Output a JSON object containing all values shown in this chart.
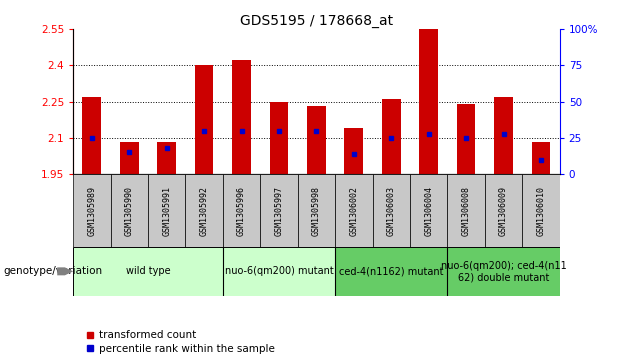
{
  "title": "GDS5195 / 178668_at",
  "samples": [
    "GSM1305989",
    "GSM1305990",
    "GSM1305991",
    "GSM1305992",
    "GSM1305996",
    "GSM1305997",
    "GSM1305998",
    "GSM1306002",
    "GSM1306003",
    "GSM1306004",
    "GSM1306008",
    "GSM1306009",
    "GSM1306010"
  ],
  "red_values": [
    2.27,
    2.085,
    2.085,
    2.4,
    2.42,
    2.25,
    2.23,
    2.14,
    2.26,
    2.55,
    2.24,
    2.27,
    2.085
  ],
  "blue_values_pct": [
    25,
    15,
    18,
    30,
    30,
    30,
    30,
    14,
    25,
    28,
    25,
    28,
    10
  ],
  "ymin": 1.95,
  "ymax": 2.55,
  "y_ticks": [
    1.95,
    2.1,
    2.25,
    2.4,
    2.55
  ],
  "right_yticks": [
    0,
    25,
    50,
    75,
    100
  ],
  "bar_color": "#cc0000",
  "dot_color": "#0000cc",
  "plot_bg_color": "#ffffff",
  "groups": [
    {
      "label": "wild type",
      "indices": [
        0,
        1,
        2,
        3
      ],
      "color": "#ccffcc"
    },
    {
      "label": "nuo-6(qm200) mutant",
      "indices": [
        4,
        5,
        6
      ],
      "color": "#ccffcc"
    },
    {
      "label": "ced-4(n1162) mutant",
      "indices": [
        7,
        8,
        9
      ],
      "color": "#66cc66"
    },
    {
      "label": "nuo-6(qm200); ced-4(n11\n62) double mutant",
      "indices": [
        10,
        11,
        12
      ],
      "color": "#66cc66"
    }
  ],
  "sample_box_color": "#c8c8c8",
  "bar_width": 0.5,
  "title_fontsize": 10,
  "tick_fontsize": 7.5,
  "sample_fontsize": 6,
  "group_fontsize": 7,
  "legend_fontsize": 7.5
}
